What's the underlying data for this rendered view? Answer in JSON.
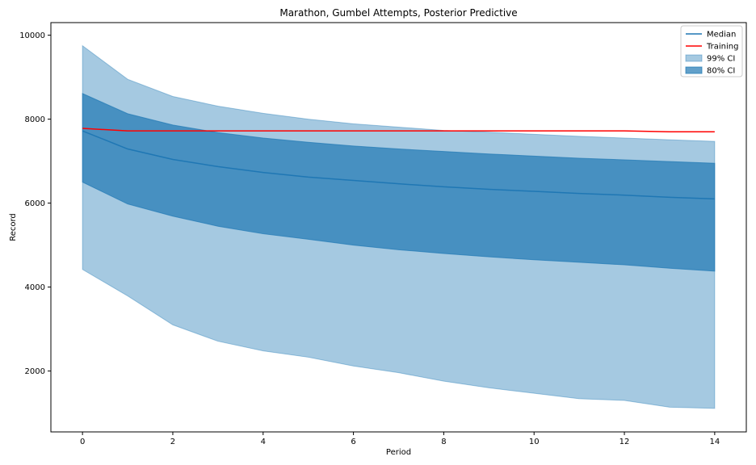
{
  "chart_data": {
    "type": "area",
    "title": "Marathon, Gumbel Attempts, Posterior Predictive",
    "xlabel": "Period",
    "ylabel": "Record",
    "xlim": [
      -0.7,
      14.7
    ],
    "ylim": [
      550,
      10300
    ],
    "xticks": [
      0,
      2,
      4,
      6,
      8,
      10,
      12,
      14
    ],
    "yticks": [
      2000,
      4000,
      6000,
      8000,
      10000
    ],
    "grid": false,
    "legend_position": "top-right",
    "x": [
      0,
      1,
      2,
      3,
      4,
      5,
      6,
      7,
      8,
      9,
      10,
      11,
      12,
      13,
      14
    ],
    "series": [
      {
        "name": "Median",
        "kind": "line",
        "color": "#1f77b4",
        "values": [
          7720,
          7290,
          7040,
          6870,
          6730,
          6620,
          6540,
          6460,
          6390,
          6330,
          6280,
          6230,
          6190,
          6140,
          6100
        ]
      },
      {
        "name": "Training",
        "kind": "line",
        "color": "#ff0000",
        "values": [
          7780,
          7720,
          7720,
          7720,
          7720,
          7720,
          7720,
          7720,
          7720,
          7720,
          7720,
          7720,
          7720,
          7700,
          7700
        ]
      },
      {
        "name": "99% CI",
        "kind": "band",
        "color": "#1f77b4",
        "opacity": 0.4,
        "lower": [
          4420,
          3790,
          3100,
          2710,
          2480,
          2330,
          2120,
          1960,
          1760,
          1600,
          1470,
          1340,
          1300,
          1140,
          1110
        ],
        "upper": [
          9750,
          8950,
          8540,
          8310,
          8140,
          8000,
          7890,
          7810,
          7730,
          7690,
          7640,
          7590,
          7550,
          7510,
          7470
        ]
      },
      {
        "name": "80% CI",
        "kind": "band",
        "color": "#1f77b4",
        "opacity": 0.7,
        "lower": [
          6500,
          5980,
          5690,
          5450,
          5270,
          5140,
          5000,
          4890,
          4800,
          4720,
          4650,
          4590,
          4530,
          4450,
          4380
        ],
        "upper": [
          8610,
          8130,
          7860,
          7680,
          7550,
          7450,
          7360,
          7290,
          7230,
          7170,
          7120,
          7070,
          7030,
          6990,
          6950
        ]
      }
    ]
  }
}
